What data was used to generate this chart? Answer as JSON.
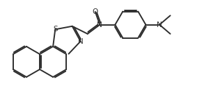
{
  "bg_color": "#ffffff",
  "line_color": "#2d2d2d",
  "lw": 1.4,
  "lw_text": 10,
  "atoms": {
    "S_label": "S",
    "N_label": "N",
    "O_label": "O",
    "N2_label": "N",
    "N3_label": "N"
  },
  "font_size": 7.5
}
